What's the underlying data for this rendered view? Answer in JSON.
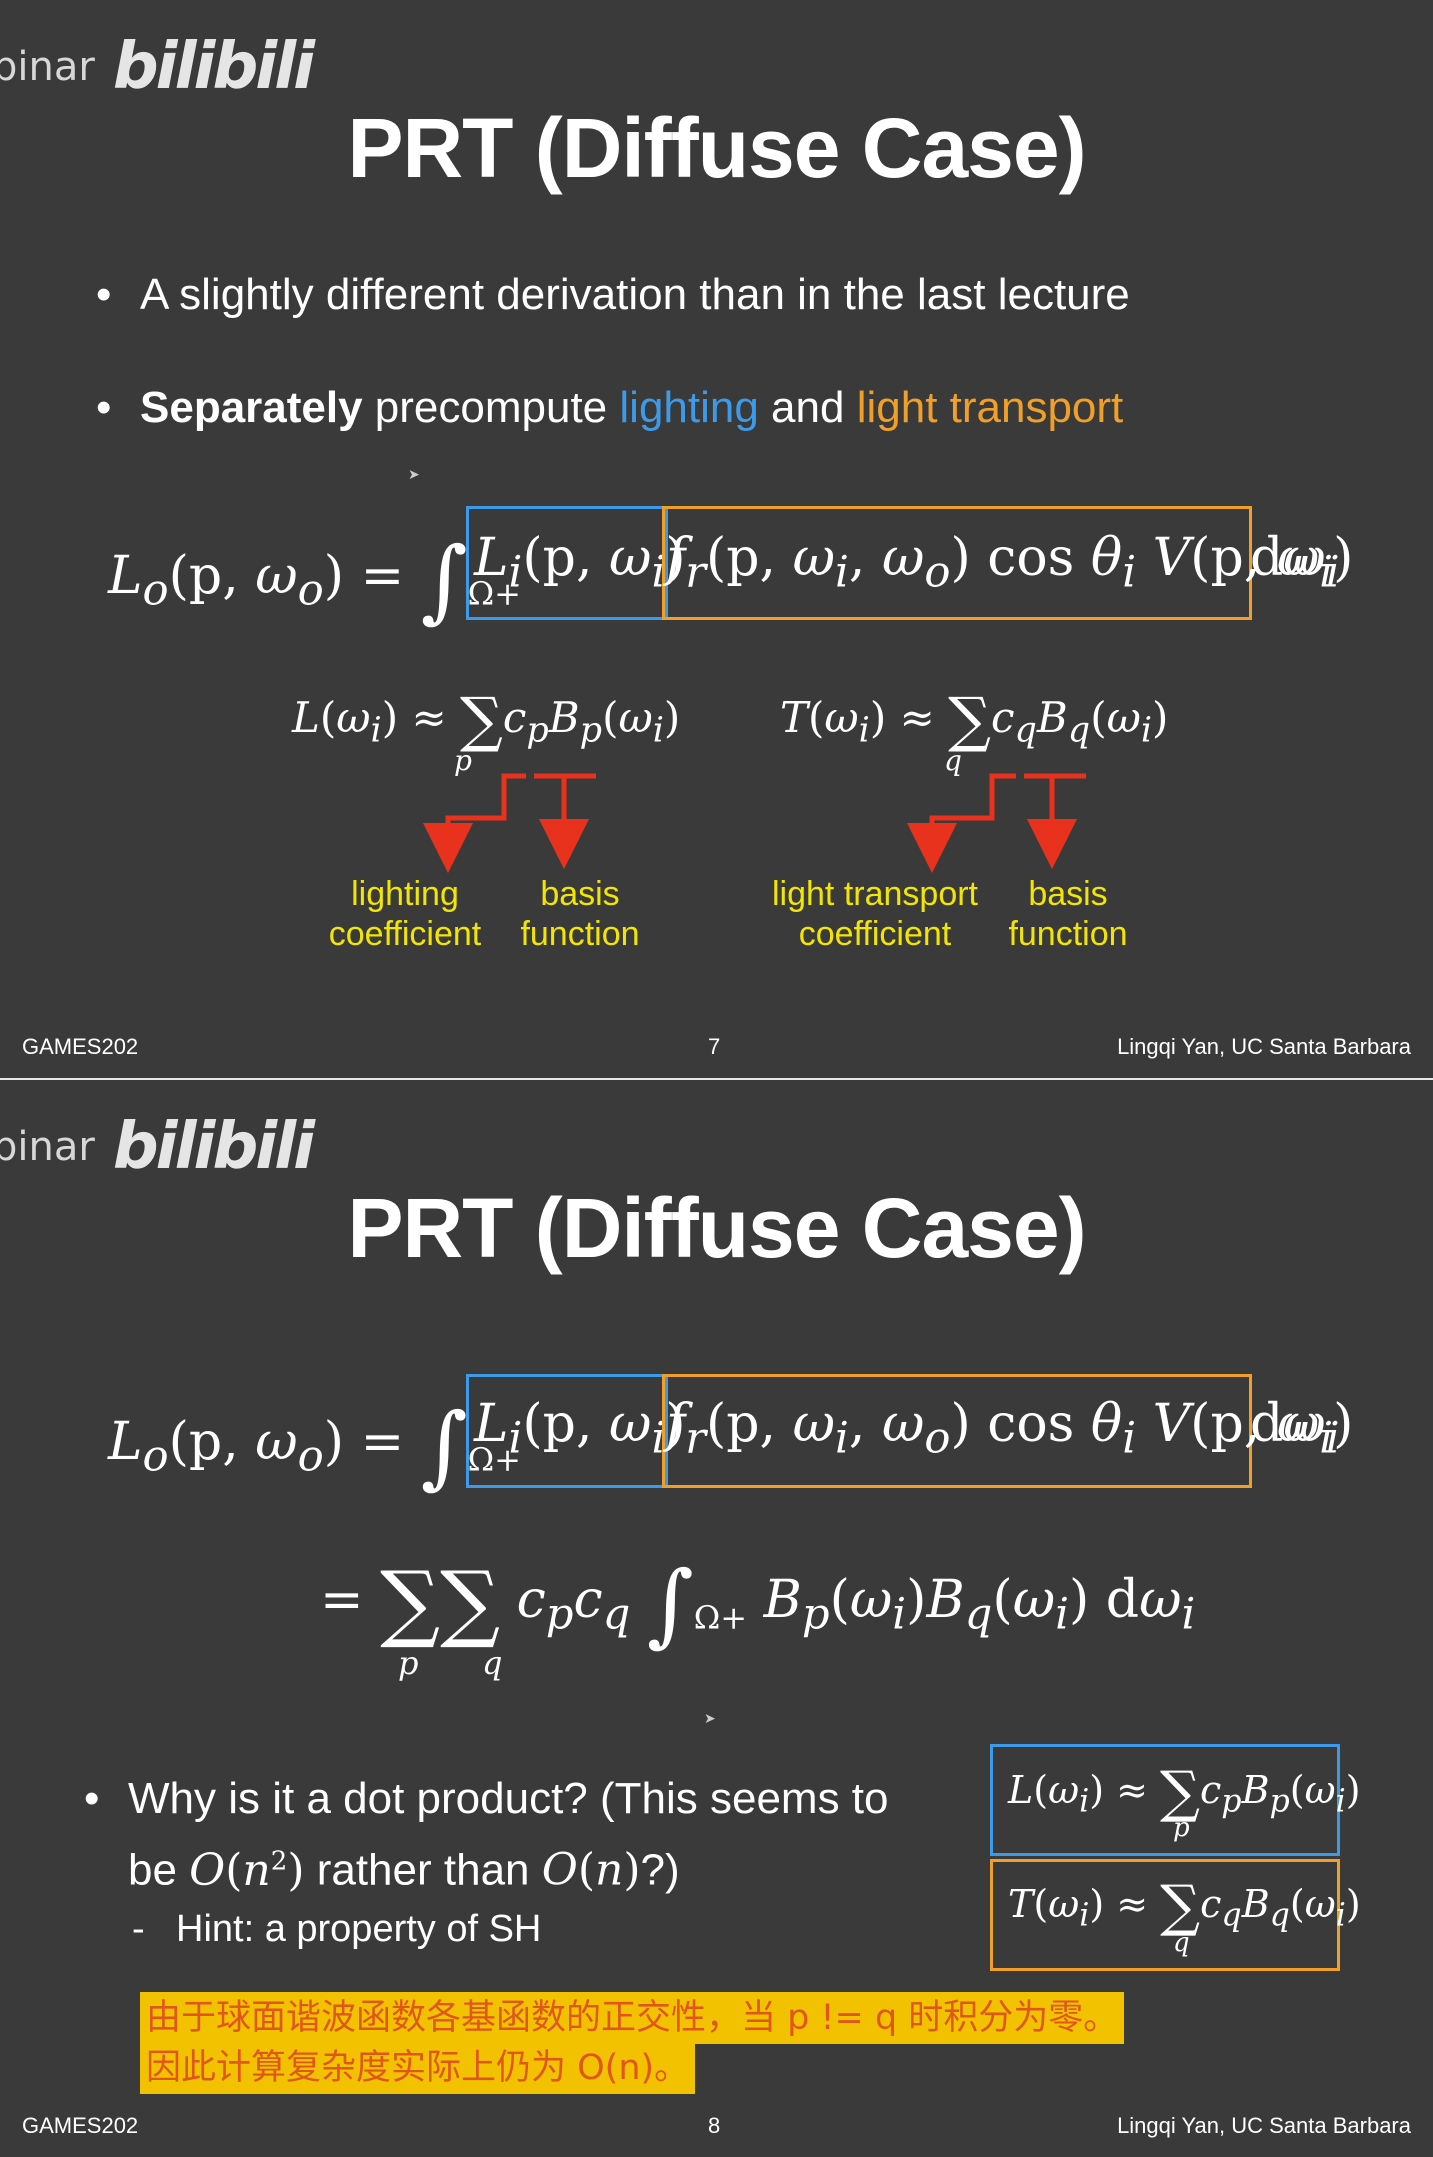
{
  "header": {
    "watermark_text": "binar",
    "logo_text": "bilibili"
  },
  "slide1": {
    "title": "PRT (Diffuse Case)",
    "bullet1": "A slightly different derivation than in the last lecture",
    "bullet2": {
      "bold": "Separately",
      "part1": " precompute ",
      "lighting": "lighting",
      "part2": " and ",
      "transport": "light transport"
    },
    "labels": {
      "lighting_coeff": [
        "lighting",
        "coefficient"
      ],
      "basis1": [
        "basis",
        "function"
      ],
      "transport_coeff": [
        "light transport",
        "coefficient"
      ],
      "basis2": [
        "basis",
        "function"
      ]
    },
    "footer": {
      "left": "GAMES202",
      "page": "7",
      "right": "Lingqi Yan, UC Santa Barbara"
    }
  },
  "slide2": {
    "title": "PRT (Diffuse Case)",
    "bullet1_line1": "Why is it a dot product? (This seems to",
    "bullet1_line2_a": "be ",
    "bullet1_line2_b": " rather than ",
    "bullet1_line2_c": "?)",
    "subbullet": "Hint: a property of SH",
    "note_line1": "由于球面谐波函数各基函数的正交性，当 p != q 时积分为零。",
    "note_line2": "因此计算复杂度实际上仍为 O(n)。",
    "footer": {
      "left": "GAMES202",
      "page": "8",
      "right": "Lingqi Yan, UC Santa Barbara"
    }
  },
  "colors": {
    "background": "#3a3a3a",
    "lighting_blue": "#3d9ae8",
    "transport_orange": "#f0a028",
    "label_yellow": "#f2e600",
    "arrow_red": "#e8321e",
    "note_bg": "#f2c200",
    "note_text": "#e0571a"
  }
}
